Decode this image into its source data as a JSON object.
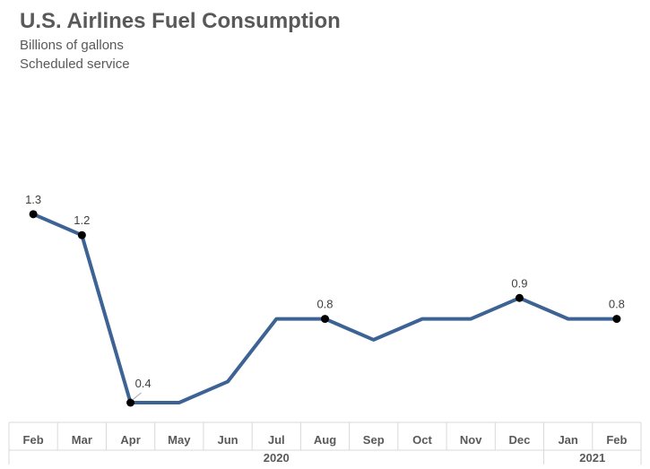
{
  "chart_data": {
    "type": "line",
    "title": "U.S. Airlines Fuel Consumption",
    "subtitle": [
      "Billions of gallons",
      "Scheduled service"
    ],
    "xlabel": "",
    "ylabel": "",
    "categories": [
      "Feb",
      "Mar",
      "Apr",
      "May",
      "Jun",
      "Jul",
      "Aug",
      "Sep",
      "Oct",
      "Nov",
      "Dec",
      "Jan",
      "Feb"
    ],
    "year_groups": [
      {
        "label": "2020",
        "start": 0,
        "end": 10
      },
      {
        "label": "2021",
        "start": 11,
        "end": 12
      }
    ],
    "series": [
      {
        "values": [
          1.3,
          1.2,
          0.4,
          0.4,
          0.5,
          0.8,
          0.8,
          0.7,
          0.8,
          0.8,
          0.9,
          0.8,
          0.8
        ],
        "color": "#3d6394"
      }
    ],
    "data_labels": [
      {
        "index": 0,
        "text": "1.3"
      },
      {
        "index": 1,
        "text": "1.2"
      },
      {
        "index": 2,
        "text": "0.4"
      },
      {
        "index": 6,
        "text": "0.8"
      },
      {
        "index": 10,
        "text": "0.9"
      },
      {
        "index": 12,
        "text": "0.8"
      }
    ],
    "ylim": [
      0,
      1.4
    ],
    "grid": false,
    "legend": "none"
  }
}
